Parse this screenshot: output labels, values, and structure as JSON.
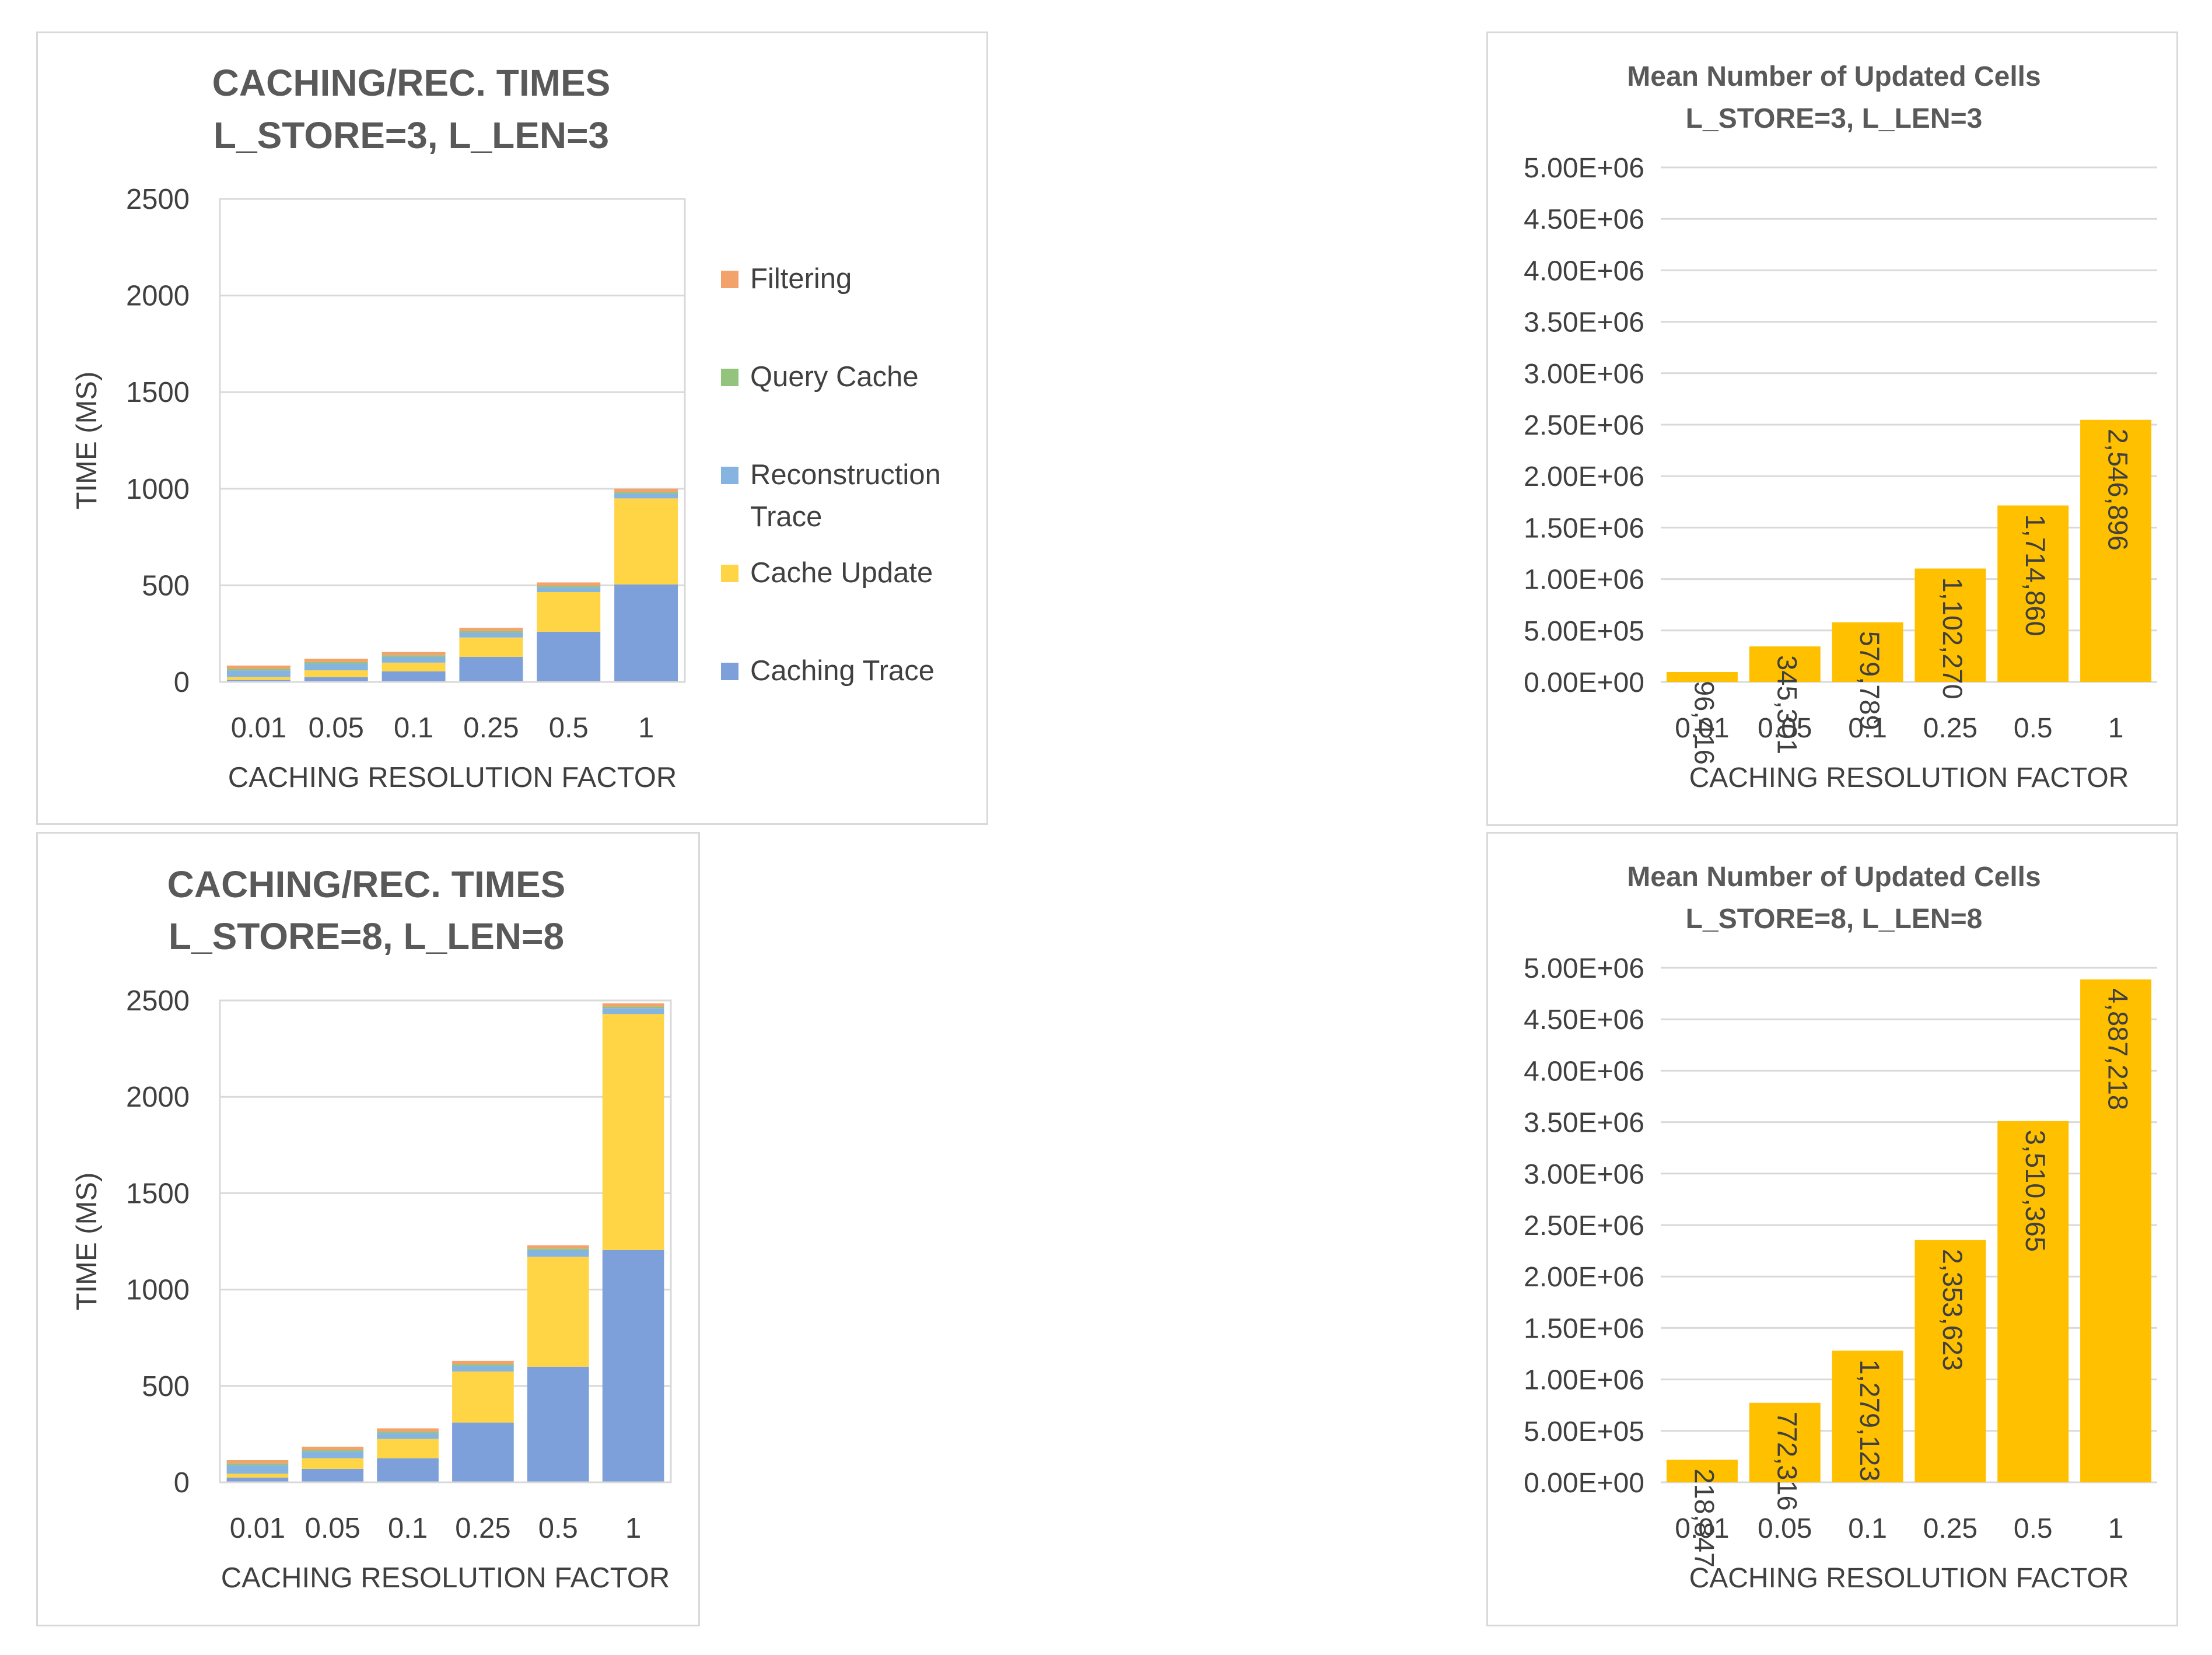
{
  "colors": {
    "filtering": "#f4a26b",
    "query_cache": "#93c47d",
    "reconstruction_trace": "#86b4e0",
    "cache_update": "#ffd445",
    "caching_trace": "#7d9fda",
    "bar_orange": "#ffc000",
    "gridline": "#d9d9d9",
    "text": "#404040"
  },
  "chart_data": [
    {
      "type": "bar",
      "stacked": true,
      "title_line1": "CACHING/REC. TIMES",
      "title_line2": "L_STORE=3, L_LEN=3",
      "xlabel": "CACHING RESOLUTION FACTOR",
      "ylabel": "TIME (MS)",
      "ylim": [
        0,
        2500
      ],
      "yticks": [
        "0",
        "500",
        "1000",
        "1500",
        "2000",
        "2500"
      ],
      "yticks_values": [
        0,
        500,
        1000,
        1500,
        2000,
        2500
      ],
      "categories": [
        "0.01",
        "0.05",
        "0.1",
        "0.25",
        "0.5",
        "1"
      ],
      "legend_position": "right",
      "series": [
        {
          "name": "Caching Trace",
          "key": "caching_trace",
          "values": [
            10,
            25,
            55,
            130,
            260,
            505
          ]
        },
        {
          "name": "Cache Update",
          "key": "cache_update",
          "values": [
            15,
            35,
            45,
            100,
            205,
            445
          ]
        },
        {
          "name": "Reconstruction Trace",
          "key": "reconstruction_trace",
          "values": [
            35,
            35,
            30,
            25,
            25,
            25
          ]
        },
        {
          "name": "Query Cache",
          "key": "query_cache",
          "values": [
            8,
            8,
            8,
            8,
            8,
            8
          ]
        },
        {
          "name": "Filtering",
          "key": "filtering",
          "values": [
            17,
            17,
            17,
            17,
            17,
            17
          ]
        }
      ],
      "legend": [
        {
          "name_lines": [
            "Filtering"
          ],
          "key": "filtering"
        },
        {
          "name_lines": [
            "Query Cache"
          ],
          "key": "query_cache"
        },
        {
          "name_lines": [
            "Reconstruction",
            "Trace"
          ],
          "key": "reconstruction_trace"
        },
        {
          "name_lines": [
            "Cache Update"
          ],
          "key": "cache_update"
        },
        {
          "name_lines": [
            "Caching Trace"
          ],
          "key": "caching_trace"
        }
      ]
    },
    {
      "type": "bar",
      "title_line1": "Mean Number of Updated Cells",
      "title_line2": "L_STORE=3, L_LEN=3",
      "xlabel": "CACHING RESOLUTION FACTOR",
      "ylabel": "",
      "ylim": [
        0,
        5000000
      ],
      "yticks": [
        "0.00E+00",
        "5.00E+05",
        "1.00E+06",
        "1.50E+06",
        "2.00E+06",
        "2.50E+06",
        "3.00E+06",
        "3.50E+06",
        "4.00E+06",
        "4.50E+06",
        "5.00E+06"
      ],
      "yticks_values": [
        0,
        500000,
        1000000,
        1500000,
        2000000,
        2500000,
        3000000,
        3500000,
        4000000,
        4500000,
        5000000
      ],
      "categories": [
        "0.01",
        "0.05",
        "0.1",
        "0.25",
        "0.5",
        "1"
      ],
      "values": [
        96416,
        345301,
        579789,
        1102270,
        1714860,
        2546896
      ],
      "labels": [
        "96,416",
        "345,301",
        "579,789",
        "1,102,270",
        "1,714,860",
        "2,546,896"
      ]
    },
    {
      "type": "bar",
      "stacked": true,
      "title_line1": "CACHING/REC. TIMES",
      "title_line2": "L_STORE=8, L_LEN=8",
      "xlabel": "CACHING RESOLUTION FACTOR",
      "ylabel": "TIME (MS)",
      "ylim": [
        0,
        2500
      ],
      "yticks": [
        "0",
        "500",
        "1000",
        "1500",
        "2000",
        "2500"
      ],
      "yticks_values": [
        0,
        500,
        1000,
        1500,
        2000,
        2500
      ],
      "categories": [
        "0.01",
        "0.05",
        "0.1",
        "0.25",
        "0.5",
        "1"
      ],
      "series": [
        {
          "name": "Caching Trace",
          "key": "caching_trace",
          "values": [
            25,
            70,
            125,
            310,
            600,
            1205
          ]
        },
        {
          "name": "Cache Update",
          "key": "cache_update",
          "values": [
            20,
            55,
            100,
            265,
            570,
            1225
          ]
        },
        {
          "name": "Reconstruction Trace",
          "key": "reconstruction_trace",
          "values": [
            45,
            35,
            30,
            30,
            35,
            30
          ]
        },
        {
          "name": "Query Cache",
          "key": "query_cache",
          "values": [
            8,
            8,
            8,
            8,
            8,
            8
          ]
        },
        {
          "name": "Filtering",
          "key": "filtering",
          "values": [
            17,
            17,
            17,
            17,
            17,
            17
          ]
        }
      ]
    },
    {
      "type": "bar",
      "title_line1": "Mean Number of Updated Cells",
      "title_line2": "L_STORE=8, L_LEN=8",
      "xlabel": "CACHING RESOLUTION FACTOR",
      "ylabel": "",
      "ylim": [
        0,
        5000000
      ],
      "yticks": [
        "0.00E+00",
        "5.00E+05",
        "1.00E+06",
        "1.50E+06",
        "2.00E+06",
        "2.50E+06",
        "3.00E+06",
        "3.50E+06",
        "4.00E+06",
        "4.50E+06",
        "5.00E+06"
      ],
      "yticks_values": [
        0,
        500000,
        1000000,
        1500000,
        2000000,
        2500000,
        3000000,
        3500000,
        4000000,
        4500000,
        5000000
      ],
      "categories": [
        "0.01",
        "0.05",
        "0.1",
        "0.25",
        "0.5",
        "1"
      ],
      "values": [
        218847,
        772316,
        1279123,
        2353623,
        3510365,
        4887218
      ],
      "labels": [
        "218,847",
        "772,316",
        "1,279,123",
        "2,353,623",
        "3,510,365",
        "4,887,218"
      ]
    }
  ]
}
